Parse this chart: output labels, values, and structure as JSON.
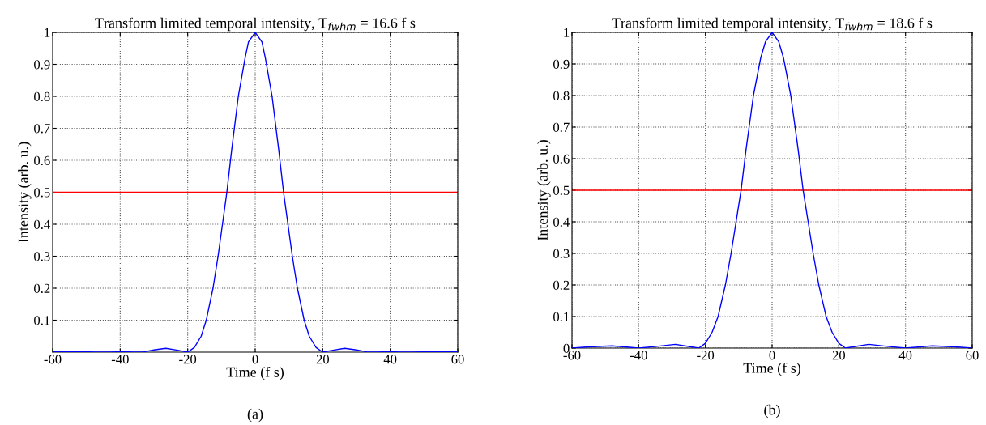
{
  "chart_data": [
    {
      "type": "line",
      "title": "Transform limited temporal intensity, T$_{fwhm}$ = 16.6 f s",
      "xlabel": "Time (f s)",
      "ylabel": "Intensity (arb. u.)",
      "annotations": [
        "(a)"
      ],
      "series": [
        {
          "color": "#0000ff",
          "x": [
            -60,
            -52,
            -45,
            -36,
            -33,
            -30,
            -26.5,
            -23,
            -20,
            -18,
            -16,
            -14.5,
            -12.5,
            -11,
            -9.7,
            -8.4,
            -7,
            -5,
            -3,
            -2,
            0,
            2,
            3,
            5,
            7,
            8.4,
            9.7,
            11,
            12.5,
            14.5,
            16,
            18,
            20,
            23,
            26.5,
            30,
            33,
            36,
            45,
            52,
            60
          ],
          "values": [
            0.002,
            0.001,
            0.003,
            0,
            0.001,
            0.007,
            0.012,
            0.006,
            0,
            0.015,
            0.05,
            0.1,
            0.2,
            0.3,
            0.4,
            0.5,
            0.63,
            0.8,
            0.92,
            0.97,
            1,
            0.97,
            0.92,
            0.8,
            0.63,
            0.5,
            0.4,
            0.3,
            0.2,
            0.1,
            0.05,
            0.015,
            0,
            0.006,
            0.012,
            0.007,
            0.001,
            0,
            0.003,
            0.001,
            0.002
          ]
        }
      ],
      "ref_lines": [
        {
          "axis": "y",
          "value": 0.5,
          "color": "#ff0000"
        }
      ],
      "xlim": [
        -60,
        60
      ],
      "xticks": [
        -60,
        -40,
        -20,
        0,
        20,
        40,
        60
      ],
      "ylim": [
        0,
        1
      ],
      "yticks": [
        0.1,
        0.2,
        0.3,
        0.4,
        0.5,
        0.6,
        0.7,
        0.8,
        0.9,
        1
      ],
      "grid": true,
      "line_style": "solid",
      "marker": "none"
    },
    {
      "type": "line",
      "title": "Transform limited temporal intensity, T$_{fwhm}$ = 18.6 f s",
      "xlabel": "Time (f s)",
      "ylabel": "Intensity (arb. u.)",
      "annotations": [
        "(b)"
      ],
      "series": [
        {
          "color": "#0000ff",
          "x": [
            -60,
            -55,
            -48,
            -40,
            -34,
            -29,
            -25,
            -22,
            -20,
            -18,
            -16.2,
            -14,
            -12.3,
            -10.8,
            -9.3,
            -7.8,
            -5.6,
            -3.4,
            -2,
            0,
            2,
            3.4,
            5.6,
            7.8,
            9.3,
            10.8,
            12.3,
            14,
            16.2,
            18,
            20,
            22,
            25,
            29,
            34,
            40,
            48,
            55,
            60
          ],
          "values": [
            0,
            0.004,
            0.007,
            0,
            0.006,
            0.012,
            0.005,
            0,
            0.015,
            0.05,
            0.1,
            0.2,
            0.3,
            0.4,
            0.5,
            0.63,
            0.8,
            0.92,
            0.97,
            1,
            0.97,
            0.92,
            0.8,
            0.63,
            0.5,
            0.4,
            0.3,
            0.2,
            0.1,
            0.05,
            0.015,
            0,
            0.005,
            0.012,
            0.006,
            0,
            0.007,
            0.004,
            0
          ]
        }
      ],
      "ref_lines": [
        {
          "axis": "y",
          "value": 0.5,
          "color": "#ff0000"
        }
      ],
      "xlim": [
        -60,
        60
      ],
      "xticks": [
        -60,
        -40,
        -20,
        0,
        20,
        40,
        60
      ],
      "ylim": [
        0,
        1
      ],
      "yticks": [
        0,
        0.1,
        0.2,
        0.3,
        0.4,
        0.5,
        0.6,
        0.7,
        0.8,
        0.9,
        1
      ],
      "grid": true,
      "line_style": "solid",
      "marker": "none"
    }
  ]
}
